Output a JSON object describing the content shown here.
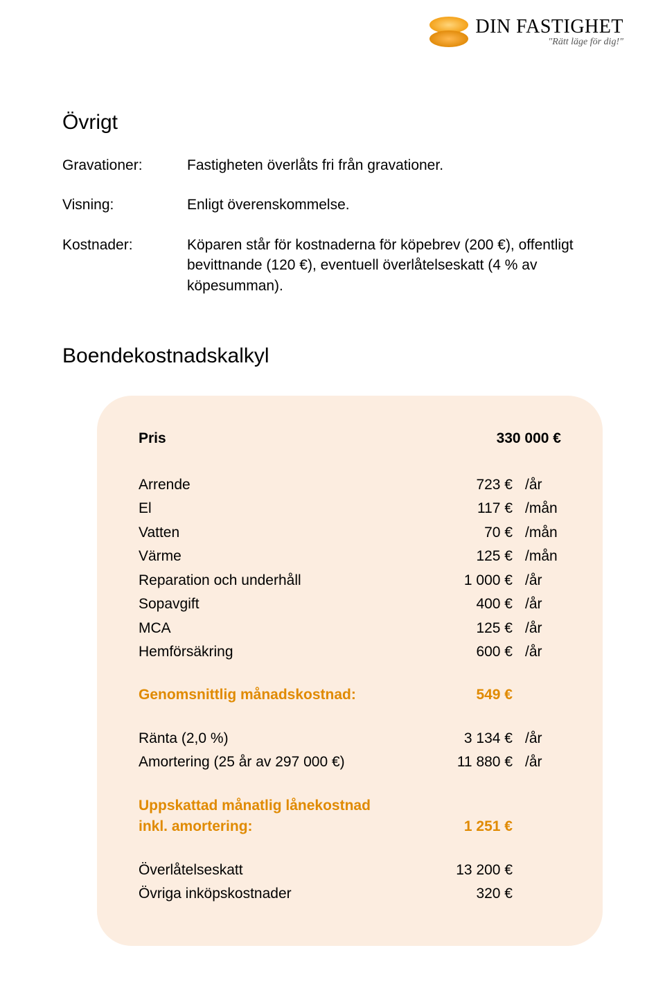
{
  "logo": {
    "brand_part1": "DIN",
    "brand_part2": "FASTIGHET",
    "tagline": "\"Rätt läge för dig!\""
  },
  "page": {
    "section1_title": "Övrigt",
    "section2_title": "Boendekostnadskalkyl"
  },
  "info": [
    {
      "label": "Gravationer:",
      "value": "Fastigheten överlåts fri från gravationer."
    },
    {
      "label": "Visning:",
      "value": "Enligt överenskommelse."
    },
    {
      "label": "Kostnader:",
      "value": "Köparen står för kostnaderna för köpebrev (200 €), offentligt bevittnande (120 €), eventuell överlåtelseskatt (4 % av köpesumman)."
    }
  ],
  "calc": {
    "price_label": "Pris",
    "price_value": "330 000 €",
    "rows_block1": [
      {
        "label": "Arrende",
        "amount": "723 €",
        "unit": "/år"
      },
      {
        "label": "El",
        "amount": "117 €",
        "unit": "/mån"
      },
      {
        "label": "Vatten",
        "amount": "70 €",
        "unit": "/mån"
      },
      {
        "label": "Värme",
        "amount": "125 €",
        "unit": "/mån"
      },
      {
        "label": "Reparation och underhåll",
        "amount": "1 000 €",
        "unit": "/år"
      },
      {
        "label": "Sopavgift",
        "amount": "400 €",
        "unit": "/år"
      },
      {
        "label": "MCA",
        "amount": "125 €",
        "unit": "/år"
      },
      {
        "label": "Hemförsäkring",
        "amount": "600 €",
        "unit": "/år"
      }
    ],
    "avg_month_label": "Genomsnittlig månadskostnad:",
    "avg_month_value": "549 €",
    "rows_block2": [
      {
        "label": "Ränta (2,0 %)",
        "amount": "3 134 €",
        "unit": "/år"
      },
      {
        "label": "Amortering (25 år av 297 000 €)",
        "amount": "11 880 €",
        "unit": "/år"
      }
    ],
    "loan_label_line1": "Uppskattad månatlig lånekostnad",
    "loan_label_line2": "inkl. amortering:",
    "loan_value": "1 251 €",
    "rows_block3": [
      {
        "label": "Överlåtelseskatt",
        "amount": "13 200 €",
        "unit": ""
      },
      {
        "label": "Övriga inköpskostnader",
        "amount": "320 €",
        "unit": ""
      }
    ]
  },
  "colors": {
    "background": "#ffffff",
    "box_bg": "#fcede0",
    "accent": "#e08a00",
    "text": "#000000"
  }
}
